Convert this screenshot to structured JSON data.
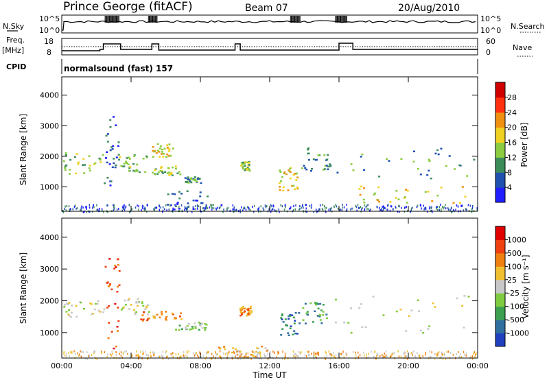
{
  "header": {
    "station": "Prince George (fitACF)",
    "beam": "Beam 07",
    "date": "20/Aug/2010"
  },
  "top_panels": {
    "nsky": {
      "label": "N.Sky",
      "ticks": [
        "10^5",
        "10^0"
      ],
      "right_label": "N.Search",
      "right_ticks": [
        "10^5",
        "10^0"
      ]
    },
    "freq": {
      "label": "Freq.",
      "unit": "[MHz]",
      "ticks": [
        "18",
        "8"
      ],
      "right_label": "Nave",
      "right_ticks": [
        "60",
        "0"
      ]
    },
    "cpid": {
      "label": "CPID",
      "value": "normalsound (fast) 157"
    }
  },
  "chart_data": [
    {
      "type": "heatmap",
      "name": "power-panel",
      "xlabel": "",
      "ylabel": "Slant Range [km]",
      "x_range": [
        "00:00",
        "24:00"
      ],
      "ylim": [
        200,
        4600
      ],
      "yticks": [
        "1000",
        "2000",
        "3000",
        "4000"
      ],
      "colorbar": {
        "label": "Power [dB]",
        "ticks": [
          "4",
          "8",
          "12",
          "16",
          "20",
          "24",
          "28"
        ],
        "colors": [
          "#1f1fff",
          "#2050b0",
          "#3c8c5a",
          "#8ccc40",
          "#f0d020",
          "#f09010",
          "#ff3010",
          "#d00000"
        ]
      },
      "regions": [
        {
          "t0": 0.0,
          "t1": 2.4,
          "r0": 1450,
          "r1": 2150,
          "level": 3
        },
        {
          "t0": 2.4,
          "t1": 3.3,
          "r0": 1000,
          "r1": 3400,
          "level": 1
        },
        {
          "t0": 3.3,
          "t1": 4.9,
          "r0": 1500,
          "r1": 2100,
          "level": 3
        },
        {
          "t0": 5.2,
          "t1": 6.4,
          "r0": 2000,
          "r1": 2450,
          "level": 4
        },
        {
          "t0": 5.2,
          "t1": 6.8,
          "r0": 1400,
          "r1": 1700,
          "level": 3
        },
        {
          "t0": 7.0,
          "t1": 8.0,
          "r0": 1150,
          "r1": 1350,
          "level": 2
        },
        {
          "t0": 6.0,
          "t1": 8.5,
          "r0": 200,
          "r1": 900,
          "level": 1
        },
        {
          "t0": 10.3,
          "t1": 10.8,
          "r0": 1550,
          "r1": 1850,
          "level": 3
        },
        {
          "t0": 12.5,
          "t1": 13.6,
          "r0": 900,
          "r1": 1650,
          "level": 4
        },
        {
          "t0": 13.8,
          "t1": 15.5,
          "r0": 1500,
          "r1": 2300,
          "level": 2
        },
        {
          "t0": 15.8,
          "t1": 24.0,
          "r0": 1300,
          "r1": 2300,
          "level": 2
        },
        {
          "t0": 17.0,
          "t1": 23.5,
          "r0": 500,
          "r1": 1050,
          "level": 4
        }
      ]
    },
    {
      "type": "heatmap",
      "name": "velocity-panel",
      "xlabel": "Time UT",
      "ylabel": "Slant Range [km]",
      "x_range": [
        "00:00",
        "24:00"
      ],
      "xticks": [
        "00:00",
        "04:00",
        "08:00",
        "12:00",
        "16:00",
        "20:00",
        "00:00"
      ],
      "ylim": [
        200,
        4600
      ],
      "yticks": [
        "1000",
        "2000",
        "3000",
        "4000"
      ],
      "colorbar": {
        "label": "Velocity [m s⁻¹]",
        "ticks": [
          "1000",
          "500",
          "100",
          "25",
          "-25",
          "-100",
          "-500",
          "-1000"
        ],
        "colors": [
          "#2040c0",
          "#3070a0",
          "#3ca050",
          "#80cc40",
          "#c8c8c8",
          "#f0c030",
          "#f08010",
          "#f04010",
          "#e00000"
        ]
      },
      "regions": [
        {
          "t0": 0.0,
          "t1": 2.4,
          "r0": 1500,
          "r1": 2100,
          "level": 4
        },
        {
          "t0": 2.4,
          "t1": 3.3,
          "r0": 300,
          "r1": 3400,
          "level": 7
        },
        {
          "t0": 3.3,
          "t1": 5.2,
          "r0": 1600,
          "r1": 2100,
          "level": 4
        },
        {
          "t0": 4.5,
          "t1": 7.0,
          "r0": 1400,
          "r1": 1700,
          "level": 6
        },
        {
          "t0": 6.5,
          "t1": 8.3,
          "r0": 1100,
          "r1": 1350,
          "level": 3
        },
        {
          "t0": 9.0,
          "t1": 12.0,
          "r0": 200,
          "r1": 600,
          "level": 5
        },
        {
          "t0": 10.2,
          "t1": 10.9,
          "r0": 1550,
          "r1": 1850,
          "level": 6
        },
        {
          "t0": 12.6,
          "t1": 13.7,
          "r0": 900,
          "r1": 1650,
          "level": 1
        },
        {
          "t0": 13.8,
          "t1": 15.3,
          "r0": 1300,
          "r1": 2000,
          "level": 2
        },
        {
          "t0": 15.5,
          "t1": 24.0,
          "r0": 1000,
          "r1": 2200,
          "level": 4
        }
      ]
    }
  ]
}
